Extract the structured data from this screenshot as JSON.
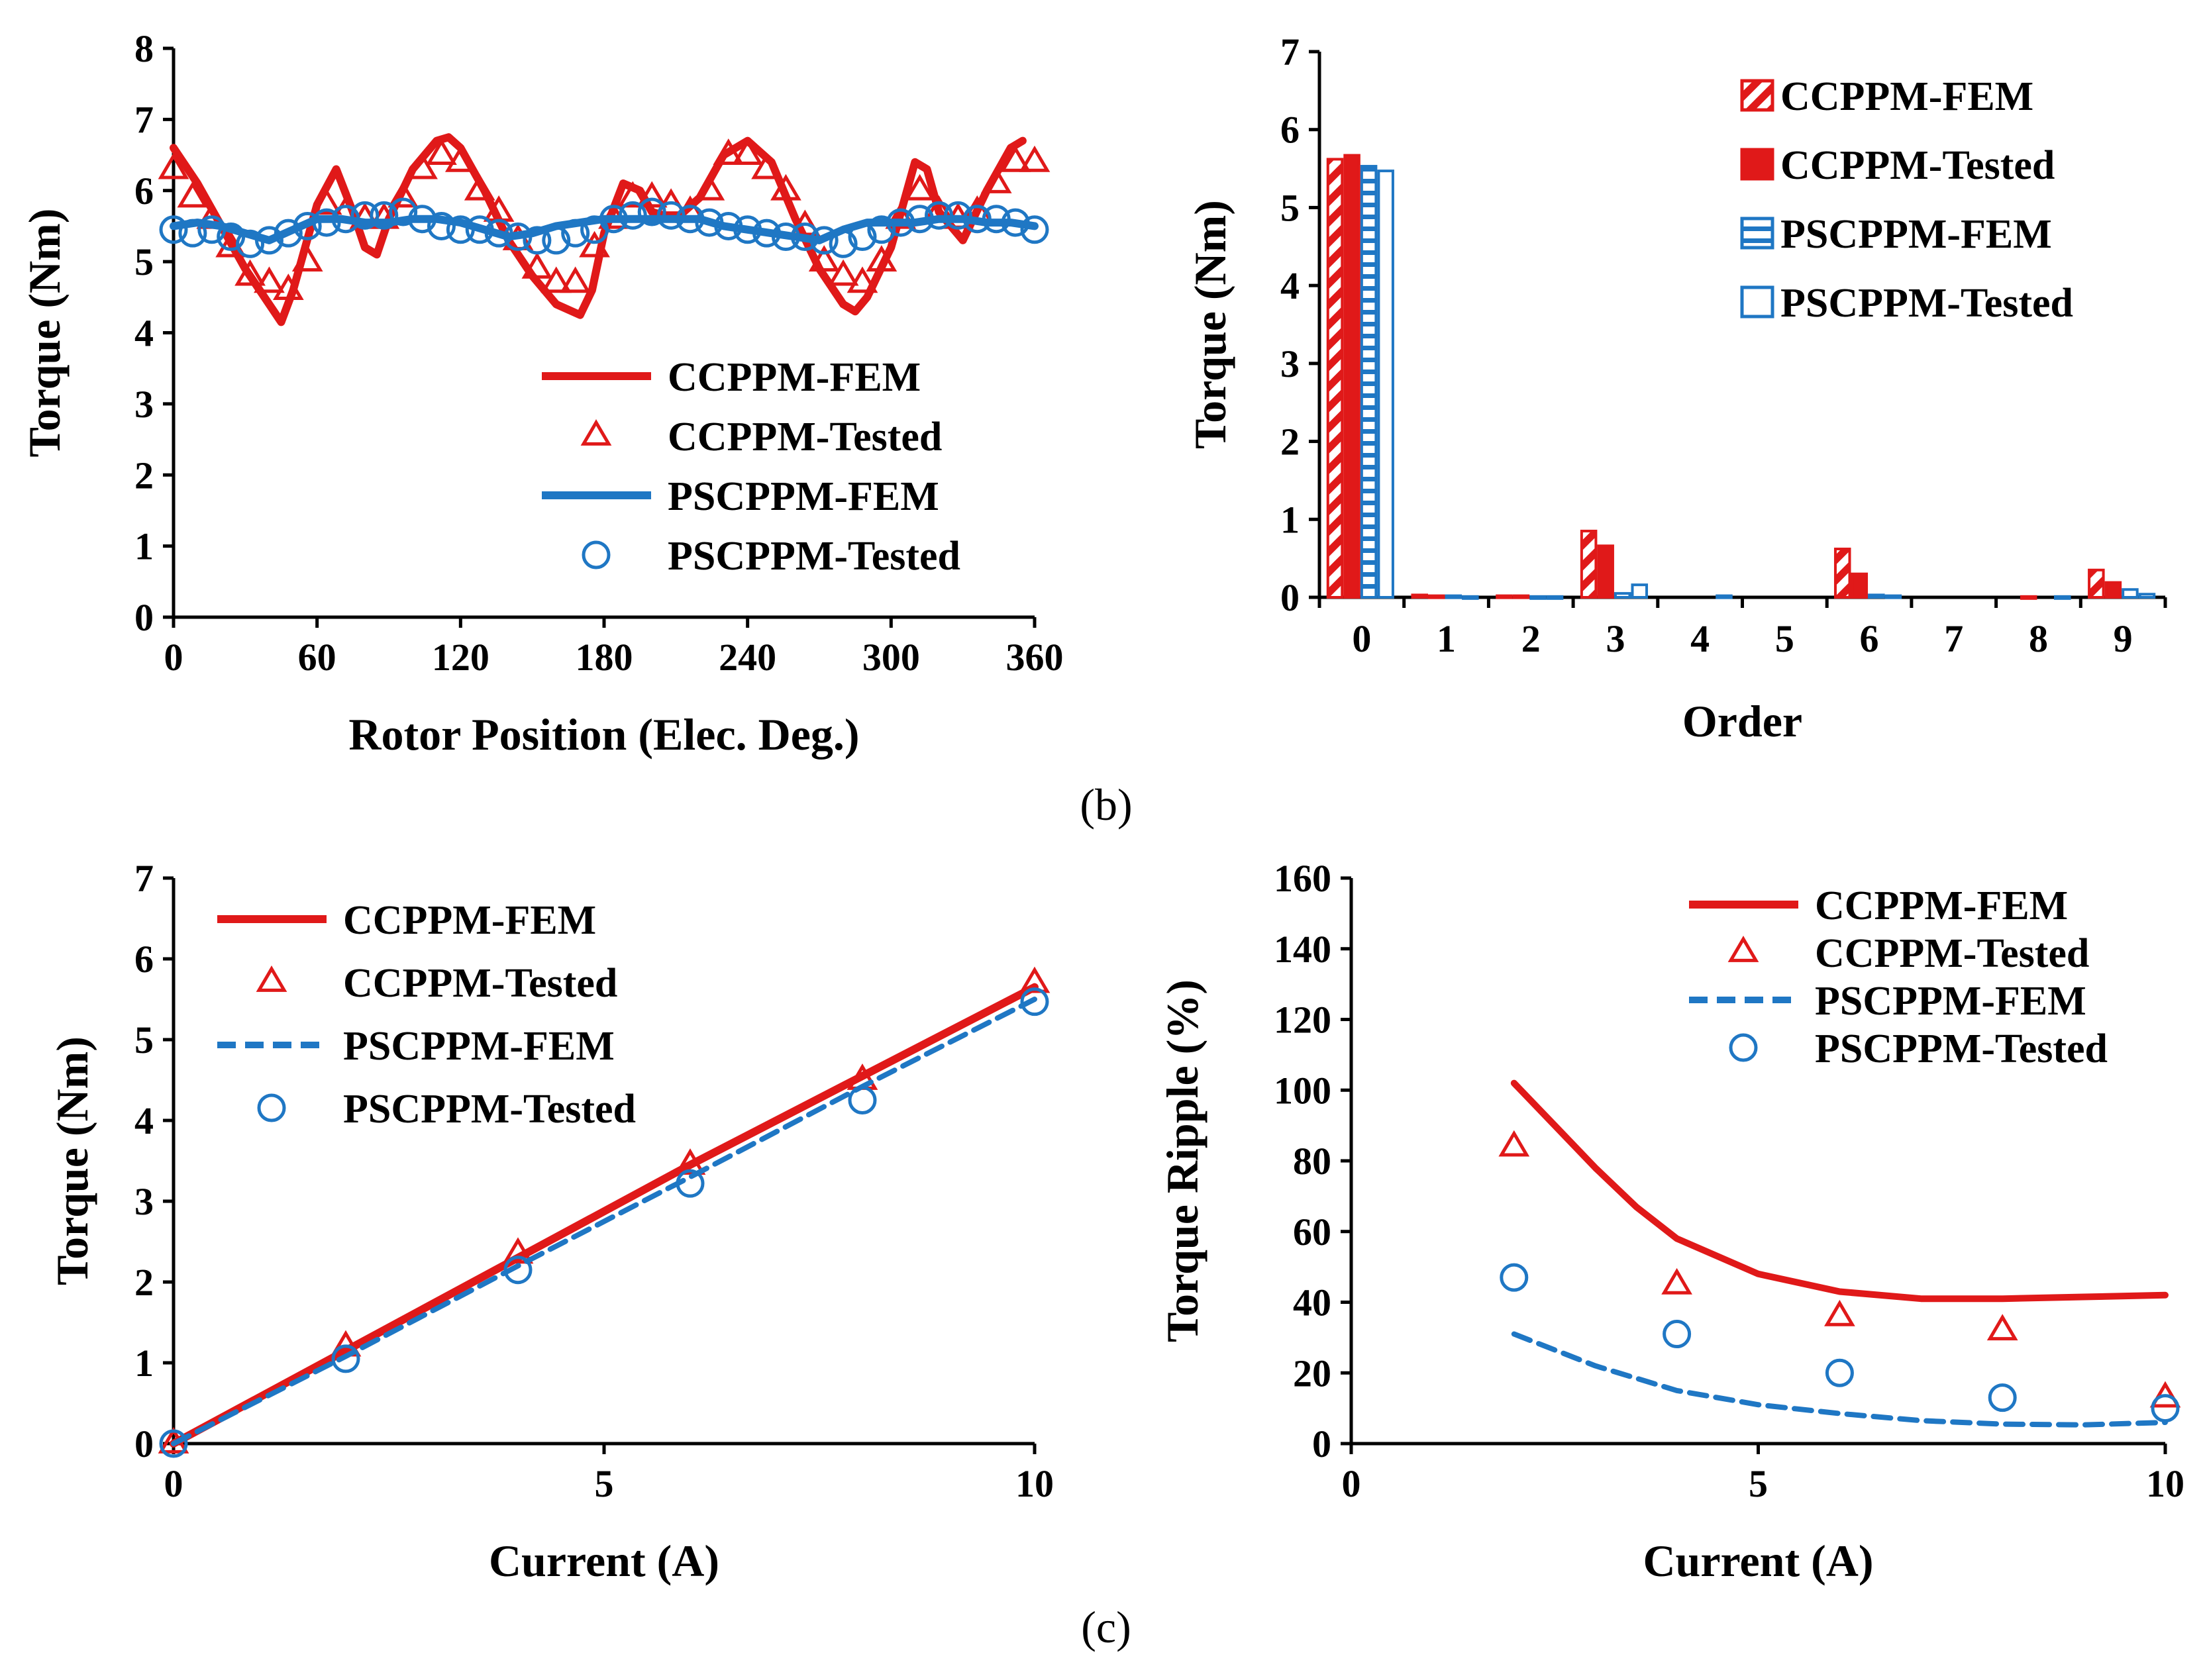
{
  "colors": {
    "ccppm": "#e01919",
    "pscppm": "#1f77c4",
    "axis": "#000000"
  },
  "captions": {
    "b": "(b)",
    "c": "(c)"
  },
  "chart_data": [
    {
      "id": "a",
      "type": "line",
      "title": "",
      "xlabel": "Rotor Position (Elec. Deg.)",
      "ylabel": "Torque (Nm)",
      "xlim": [
        0,
        360
      ],
      "ylim": [
        0,
        8
      ],
      "xticks": [
        0,
        60,
        120,
        180,
        240,
        300,
        360
      ],
      "yticks": [
        0,
        1,
        2,
        3,
        4,
        5,
        6,
        7,
        8
      ],
      "legend": {
        "position": "bottom-right",
        "entries": [
          "CCPPM-FEM",
          "CCPPM-Tested",
          "PSCPPM-FEM",
          "PSCPPM-Tested"
        ]
      },
      "series": [
        {
          "name": "CCPPM-FEM",
          "style": "line",
          "color": "ccppm",
          "x": [
            0,
            10,
            20,
            30,
            40,
            45,
            50,
            60,
            68,
            75,
            80,
            85,
            90,
            100,
            110,
            115,
            120,
            130,
            140,
            150,
            160,
            170,
            175,
            180,
            188,
            195,
            200,
            210,
            220,
            230,
            240,
            250,
            260,
            270,
            280,
            285,
            290,
            300,
            310,
            315,
            320,
            330,
            340,
            350,
            355
          ],
          "y": [
            6.6,
            6.1,
            5.5,
            4.9,
            4.4,
            4.15,
            4.6,
            5.8,
            6.3,
            5.7,
            5.2,
            5.1,
            5.6,
            6.3,
            6.7,
            6.75,
            6.6,
            6.0,
            5.3,
            4.8,
            4.4,
            4.25,
            4.6,
            5.4,
            6.1,
            6.0,
            5.7,
            5.6,
            5.9,
            6.5,
            6.7,
            6.4,
            5.6,
            4.9,
            4.4,
            4.3,
            4.5,
            5.2,
            6.4,
            6.3,
            5.7,
            5.3,
            6.0,
            6.6,
            6.7
          ]
        },
        {
          "name": "CCPPM-Tested",
          "style": "triangle",
          "color": "ccppm",
          "x": [
            0,
            8,
            16,
            24,
            32,
            40,
            48,
            56,
            64,
            72,
            80,
            88,
            96,
            104,
            112,
            120,
            128,
            136,
            144,
            152,
            160,
            168,
            176,
            184,
            192,
            200,
            208,
            216,
            224,
            232,
            240,
            248,
            256,
            264,
            272,
            280,
            288,
            296,
            304,
            312,
            320,
            328,
            336,
            344,
            352,
            360
          ],
          "y": [
            6.3,
            5.9,
            5.6,
            5.2,
            4.8,
            4.7,
            4.6,
            5.0,
            5.8,
            5.7,
            5.6,
            5.6,
            5.9,
            6.3,
            6.5,
            6.4,
            6.0,
            5.7,
            5.3,
            4.9,
            4.7,
            4.7,
            5.2,
            5.6,
            5.9,
            5.9,
            5.8,
            5.7,
            6.0,
            6.5,
            6.5,
            6.3,
            6.0,
            5.5,
            5.0,
            4.8,
            4.7,
            5.0,
            5.6,
            6.0,
            5.7,
            5.6,
            5.7,
            6.1,
            6.4,
            6.4
          ]
        },
        {
          "name": "PSCPPM-FEM",
          "style": "line",
          "color": "pscppm",
          "x": [
            0,
            10,
            20,
            30,
            40,
            50,
            60,
            70,
            80,
            90,
            100,
            110,
            120,
            130,
            140,
            150,
            160,
            170,
            180,
            190,
            200,
            210,
            220,
            230,
            240,
            250,
            260,
            270,
            280,
            290,
            300,
            310,
            320,
            330,
            340,
            350,
            360
          ],
          "y": [
            5.5,
            5.55,
            5.5,
            5.4,
            5.3,
            5.45,
            5.6,
            5.6,
            5.55,
            5.55,
            5.6,
            5.6,
            5.55,
            5.45,
            5.35,
            5.4,
            5.5,
            5.55,
            5.6,
            5.6,
            5.6,
            5.6,
            5.6,
            5.5,
            5.45,
            5.4,
            5.35,
            5.3,
            5.45,
            5.55,
            5.55,
            5.55,
            5.6,
            5.6,
            5.55,
            5.55,
            5.5
          ]
        },
        {
          "name": "PSCPPM-Tested",
          "style": "circle",
          "color": "pscppm",
          "x": [
            0,
            8,
            16,
            24,
            32,
            40,
            48,
            56,
            64,
            72,
            80,
            88,
            96,
            104,
            112,
            120,
            128,
            136,
            144,
            152,
            160,
            168,
            176,
            184,
            192,
            200,
            208,
            216,
            224,
            232,
            240,
            248,
            256,
            264,
            272,
            280,
            288,
            296,
            304,
            312,
            320,
            328,
            336,
            344,
            352,
            360
          ],
          "y": [
            5.45,
            5.4,
            5.45,
            5.35,
            5.25,
            5.3,
            5.4,
            5.5,
            5.55,
            5.6,
            5.65,
            5.65,
            5.7,
            5.6,
            5.5,
            5.45,
            5.45,
            5.4,
            5.35,
            5.3,
            5.3,
            5.4,
            5.45,
            5.6,
            5.65,
            5.7,
            5.65,
            5.6,
            5.55,
            5.5,
            5.45,
            5.4,
            5.35,
            5.35,
            5.3,
            5.25,
            5.35,
            5.45,
            5.55,
            5.6,
            5.65,
            5.65,
            5.6,
            5.6,
            5.55,
            5.45
          ]
        }
      ]
    },
    {
      "id": "b",
      "type": "bar",
      "title": "",
      "xlabel": "Order",
      "ylabel": "Torque (Nm)",
      "ylim": [
        0,
        7
      ],
      "yticks": [
        0,
        1,
        2,
        3,
        4,
        5,
        6,
        7
      ],
      "categories": [
        "0",
        "1",
        "2",
        "3",
        "4",
        "5",
        "6",
        "7",
        "8",
        "9"
      ],
      "legend": {
        "position": "top-right",
        "entries": [
          "CCPPM-FEM",
          "CCPPM-Tested",
          "PSCPPM-FEM",
          "PSCPPM-Tested"
        ]
      },
      "series": [
        {
          "name": "CCPPM-FEM",
          "style": "hatched",
          "color": "ccppm",
          "values": [
            5.62,
            0.03,
            0.02,
            0.85,
            0.0,
            0.0,
            0.62,
            0.0,
            0.0,
            0.35
          ]
        },
        {
          "name": "CCPPM-Tested",
          "style": "solid",
          "color": "ccppm",
          "values": [
            5.67,
            0.02,
            0.02,
            0.66,
            0.0,
            0.0,
            0.3,
            0.0,
            0.01,
            0.19
          ]
        },
        {
          "name": "PSCPPM-FEM",
          "style": "striped",
          "color": "pscppm",
          "values": [
            5.53,
            0.02,
            0.01,
            0.05,
            0.0,
            0.0,
            0.03,
            0.0,
            0.0,
            0.1
          ]
        },
        {
          "name": "PSCPPM-Tested",
          "style": "outline",
          "color": "pscppm",
          "values": [
            5.47,
            0.01,
            0.01,
            0.16,
            0.02,
            0.0,
            0.02,
            0.0,
            0.01,
            0.04
          ]
        }
      ]
    },
    {
      "id": "c1",
      "type": "line",
      "title": "",
      "xlabel": "Current (A)",
      "ylabel": "Torque (Nm)",
      "xlim": [
        0,
        10
      ],
      "ylim": [
        0,
        7
      ],
      "xticks": [
        0,
        5,
        10
      ],
      "yticks": [
        0,
        1,
        2,
        3,
        4,
        5,
        6,
        7
      ],
      "legend": {
        "position": "top-left",
        "entries": [
          "CCPPM-FEM",
          "CCPPM-Tested",
          "PSCPPM-FEM",
          "PSCPPM-Tested"
        ]
      },
      "series": [
        {
          "name": "CCPPM-FEM",
          "style": "line",
          "color": "ccppm",
          "x": [
            0,
            2,
            4,
            6,
            8,
            10
          ],
          "y": [
            0,
            1.15,
            2.3,
            3.45,
            4.55,
            5.65
          ]
        },
        {
          "name": "CCPPM-Tested",
          "style": "triangle",
          "color": "ccppm",
          "x": [
            0,
            2,
            4,
            6,
            8,
            10
          ],
          "y": [
            0,
            1.2,
            2.35,
            3.45,
            4.5,
            5.7
          ]
        },
        {
          "name": "PSCPPM-FEM",
          "style": "dashed",
          "color": "pscppm",
          "x": [
            0,
            2,
            4,
            6,
            8,
            10
          ],
          "y": [
            0,
            1.08,
            2.2,
            3.3,
            4.42,
            5.5
          ]
        },
        {
          "name": "PSCPPM-Tested",
          "style": "circle",
          "color": "pscppm",
          "x": [
            0,
            2,
            4,
            6,
            8,
            10
          ],
          "y": [
            0,
            1.05,
            2.15,
            3.22,
            4.25,
            5.47
          ]
        }
      ]
    },
    {
      "id": "c2",
      "type": "line",
      "title": "",
      "xlabel": "Current (A)",
      "ylabel": "Torque Ripple (%)",
      "xlim": [
        0,
        10
      ],
      "ylim": [
        0,
        160
      ],
      "xticks": [
        0,
        5,
        10
      ],
      "yticks": [
        0,
        20,
        40,
        60,
        80,
        100,
        120,
        140,
        160
      ],
      "legend": {
        "position": "top-right",
        "entries": [
          "CCPPM-FEM",
          "CCPPM-Tested",
          "PSCPPM-FEM",
          "PSCPPM-Tested"
        ]
      },
      "series": [
        {
          "name": "CCPPM-FEM",
          "style": "line",
          "color": "ccppm",
          "x": [
            2,
            2.5,
            3,
            3.5,
            4,
            5,
            6,
            7,
            8,
            9,
            10
          ],
          "y": [
            102,
            90,
            78,
            67,
            58,
            48,
            43,
            41,
            41,
            41.5,
            42
          ]
        },
        {
          "name": "CCPPM-Tested",
          "style": "triangle",
          "color": "ccppm",
          "x": [
            2,
            4,
            6,
            8,
            10
          ],
          "y": [
            84,
            45,
            36,
            32,
            13
          ]
        },
        {
          "name": "PSCPPM-FEM",
          "style": "dashed",
          "color": "pscppm",
          "x": [
            2,
            3,
            4,
            5,
            6,
            7,
            8,
            9,
            10
          ],
          "y": [
            31,
            22,
            15,
            11,
            8.5,
            6.5,
            5.5,
            5.3,
            6
          ]
        },
        {
          "name": "PSCPPM-Tested",
          "style": "circle",
          "color": "pscppm",
          "x": [
            2,
            4,
            6,
            8,
            10
          ],
          "y": [
            47,
            31,
            20,
            13,
            10
          ]
        }
      ]
    }
  ]
}
